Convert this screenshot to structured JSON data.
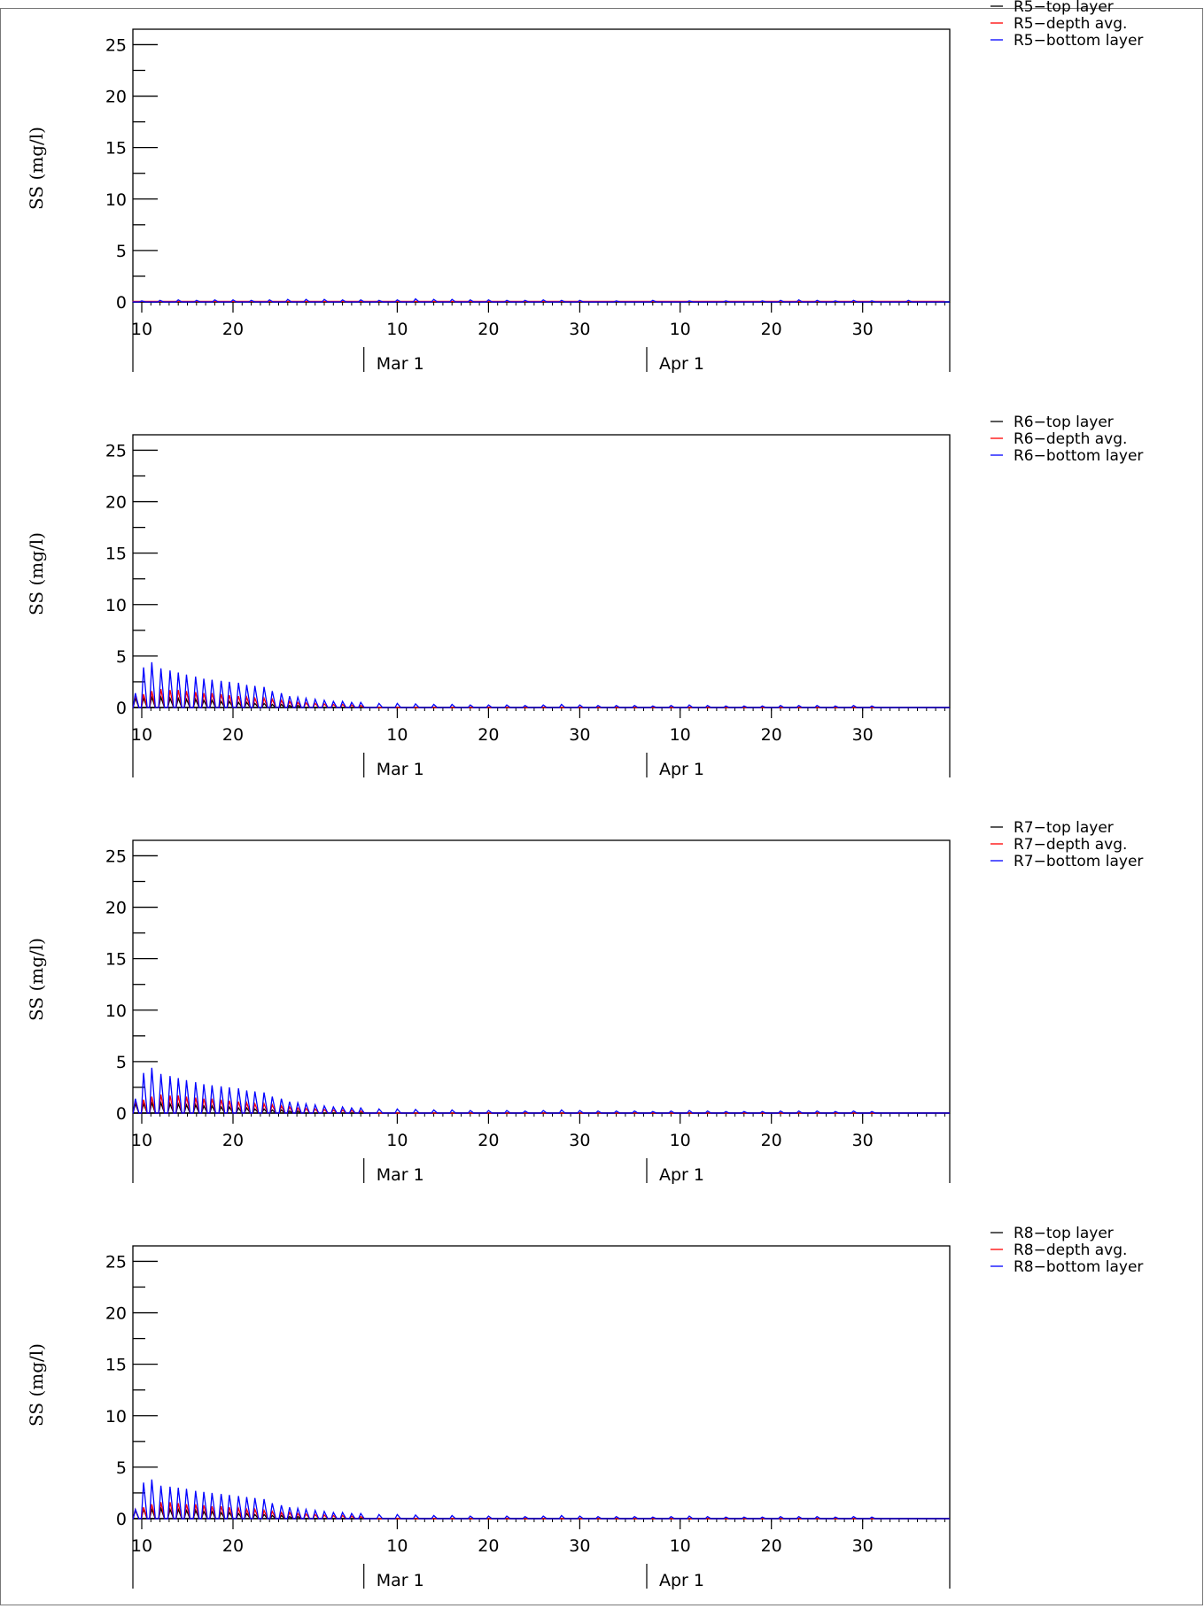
{
  "colors": {
    "top": "#000000",
    "avg": "#ff0000",
    "bottom": "#0000ff"
  },
  "x_axis": {
    "ticks": [
      {
        "label": "10",
        "day": 10
      },
      {
        "label": "20",
        "day": 20
      },
      {
        "label": "10",
        "day": 38
      },
      {
        "label": "20",
        "day": 48
      },
      {
        "label": "30",
        "day": 58
      },
      {
        "label": "10",
        "day": 69
      },
      {
        "label": "20",
        "day": 79
      },
      {
        "label": "30",
        "day": 89
      }
    ],
    "months": [
      {
        "label": "Mar 1",
        "day": 29
      },
      {
        "label": "Apr 1",
        "day": 60
      }
    ],
    "day_range": [
      9,
      98
    ]
  },
  "chart_data": [
    {
      "type": "line",
      "ylabel": "SS (mg/l)",
      "ylim": [
        0,
        26.5
      ],
      "yticks": [
        0,
        5,
        10,
        15,
        20,
        25
      ],
      "series": [
        {
          "name": "R5−top layer",
          "color": "#000000",
          "x": [
            9,
            98
          ],
          "y": [
            0.02,
            0.02
          ]
        },
        {
          "name": "R5−depth avg.",
          "color": "#ff0000",
          "x": [
            9,
            98
          ],
          "y": [
            0.05,
            0.05
          ]
        },
        {
          "name": "R5−bottom layer",
          "color": "#0000ff",
          "peak_days": [
            10,
            12,
            14,
            16,
            18,
            20,
            22,
            24,
            26,
            28,
            30,
            32,
            34,
            36,
            38,
            40,
            42,
            44,
            46,
            48,
            50,
            52,
            54,
            56,
            58,
            62,
            66,
            70,
            74,
            78,
            80,
            82,
            84,
            86,
            88,
            90,
            94
          ],
          "peak_values": [
            0.1,
            0.15,
            0.2,
            0.15,
            0.2,
            0.2,
            0.15,
            0.2,
            0.25,
            0.25,
            0.25,
            0.2,
            0.2,
            0.15,
            0.2,
            0.3,
            0.25,
            0.25,
            0.2,
            0.2,
            0.15,
            0.15,
            0.2,
            0.15,
            0.15,
            0.1,
            0.15,
            0.1,
            0.1,
            0.1,
            0.15,
            0.2,
            0.15,
            0.1,
            0.15,
            0.1,
            0.15
          ]
        }
      ]
    },
    {
      "type": "line",
      "ylabel": "SS (mg/l)",
      "ylim": [
        0,
        26.5
      ],
      "yticks": [
        0,
        5,
        10,
        15,
        20,
        25
      ],
      "series": [
        {
          "name": "R6−top layer",
          "color": "#000000",
          "peak_days": [
            9.3,
            10.2,
            11.1,
            12.1,
            13.1,
            14.0,
            14.9,
            15.9,
            16.8,
            17.7,
            18.7,
            19.6,
            20.6,
            21.5,
            22.4,
            23.4,
            24.3,
            25.3,
            26.2,
            27.1
          ],
          "peak_values": [
            0.9,
            0.9,
            1.0,
            1.0,
            0.9,
            0.9,
            0.8,
            0.8,
            0.7,
            0.7,
            0.6,
            0.6,
            0.5,
            0.5,
            0.4,
            0.4,
            0.3,
            0.3,
            0.2,
            0.2
          ]
        },
        {
          "name": "R6−depth avg.",
          "color": "#ff0000",
          "peak_days": [
            9.3,
            10.2,
            11.1,
            12.1,
            13.1,
            14.0,
            14.9,
            15.9,
            16.8,
            17.7,
            18.7,
            19.6,
            20.6,
            21.5,
            22.4,
            23.4,
            24.3,
            25.3,
            26.2,
            27.1,
            28.0,
            29.0,
            30.0,
            31.0,
            32.0,
            33.0,
            34.0
          ],
          "peak_values": [
            1.2,
            1.3,
            1.6,
            1.8,
            1.7,
            1.7,
            1.6,
            1.5,
            1.4,
            1.4,
            1.3,
            1.2,
            1.1,
            1.0,
            0.9,
            0.9,
            0.8,
            0.7,
            0.6,
            0.5,
            0.45,
            0.4,
            0.35,
            0.3,
            0.3,
            0.25,
            0.2
          ]
        },
        {
          "name": "R6−bottom layer",
          "color": "#0000ff",
          "peak_days": [
            9.3,
            10.2,
            11.1,
            12.1,
            13.1,
            14.0,
            14.9,
            15.9,
            16.8,
            17.7,
            18.7,
            19.6,
            20.6,
            21.5,
            22.4,
            23.4,
            24.3,
            25.3,
            26.2,
            27.1,
            28.0,
            29.0,
            30.0,
            31.0,
            32.0,
            33.0,
            34.0,
            36.0,
            38.0,
            40.0,
            42.0,
            44.0,
            46.0,
            48.0,
            50.0,
            52.0,
            54.0,
            56.0,
            58.0,
            60.0,
            62.0,
            64.0,
            66.0,
            68.0,
            70.0,
            72.0,
            74.0,
            76.0,
            78.0,
            80.0,
            82.0,
            84.0,
            86.0,
            88.0,
            90.0
          ],
          "peak_values": [
            1.4,
            3.9,
            4.4,
            3.8,
            3.6,
            3.4,
            3.2,
            3.0,
            2.8,
            2.7,
            2.6,
            2.5,
            2.4,
            2.2,
            2.1,
            2.0,
            1.6,
            1.4,
            1.1,
            1.0,
            0.9,
            0.8,
            0.7,
            0.6,
            0.6,
            0.5,
            0.5,
            0.4,
            0.4,
            0.35,
            0.3,
            0.3,
            0.25,
            0.25,
            0.25,
            0.2,
            0.25,
            0.3,
            0.25,
            0.2,
            0.2,
            0.2,
            0.15,
            0.2,
            0.25,
            0.2,
            0.15,
            0.15,
            0.15,
            0.2,
            0.2,
            0.2,
            0.15,
            0.2,
            0.15
          ]
        }
      ]
    },
    {
      "type": "line",
      "ylabel": "SS (mg/l)",
      "ylim": [
        0,
        26.5
      ],
      "yticks": [
        0,
        5,
        10,
        15,
        20,
        25
      ],
      "series": [
        {
          "name": "R7−top layer",
          "color": "#000000",
          "peak_days": [
            9.3,
            10.2,
            11.1,
            12.1,
            13.1,
            14.0,
            14.9,
            15.9,
            16.8,
            17.7,
            18.7,
            19.6,
            20.6,
            21.5,
            22.4,
            23.4,
            24.3,
            25.3,
            26.2,
            27.1
          ],
          "peak_values": [
            0.9,
            0.9,
            1.0,
            1.0,
            0.9,
            0.9,
            0.8,
            0.8,
            0.7,
            0.7,
            0.6,
            0.6,
            0.5,
            0.5,
            0.4,
            0.4,
            0.3,
            0.3,
            0.2,
            0.2
          ]
        },
        {
          "name": "R7−depth avg.",
          "color": "#ff0000",
          "peak_days": [
            9.3,
            10.2,
            11.1,
            12.1,
            13.1,
            14.0,
            14.9,
            15.9,
            16.8,
            17.7,
            18.7,
            19.6,
            20.6,
            21.5,
            22.4,
            23.4,
            24.3,
            25.3,
            26.2,
            27.1,
            28.0,
            29.0,
            30.0,
            31.0,
            32.0,
            33.0,
            34.0
          ],
          "peak_values": [
            1.2,
            1.3,
            1.6,
            1.8,
            1.7,
            1.7,
            1.6,
            1.5,
            1.4,
            1.4,
            1.3,
            1.2,
            1.1,
            1.0,
            0.9,
            0.9,
            0.8,
            0.7,
            0.6,
            0.5,
            0.45,
            0.4,
            0.35,
            0.3,
            0.3,
            0.25,
            0.2
          ]
        },
        {
          "name": "R7−bottom layer",
          "color": "#0000ff",
          "peak_days": [
            9.3,
            10.2,
            11.1,
            12.1,
            13.1,
            14.0,
            14.9,
            15.9,
            16.8,
            17.7,
            18.7,
            19.6,
            20.6,
            21.5,
            22.4,
            23.4,
            24.3,
            25.3,
            26.2,
            27.1,
            28.0,
            29.0,
            30.0,
            31.0,
            32.0,
            33.0,
            34.0,
            36.0,
            38.0,
            40.0,
            42.0,
            44.0,
            46.0,
            48.0,
            50.0,
            52.0,
            54.0,
            56.0,
            58.0,
            60.0,
            62.0,
            64.0,
            66.0,
            68.0,
            70.0,
            72.0,
            74.0,
            76.0,
            78.0,
            80.0,
            82.0,
            84.0,
            86.0,
            88.0,
            90.0
          ],
          "peak_values": [
            1.4,
            3.9,
            4.4,
            3.8,
            3.6,
            3.4,
            3.2,
            3.0,
            2.8,
            2.7,
            2.6,
            2.5,
            2.4,
            2.2,
            2.1,
            2.0,
            1.6,
            1.4,
            1.1,
            1.0,
            0.9,
            0.8,
            0.7,
            0.6,
            0.6,
            0.5,
            0.5,
            0.4,
            0.4,
            0.35,
            0.3,
            0.3,
            0.25,
            0.25,
            0.25,
            0.2,
            0.25,
            0.3,
            0.25,
            0.2,
            0.2,
            0.2,
            0.15,
            0.2,
            0.25,
            0.2,
            0.15,
            0.15,
            0.15,
            0.2,
            0.2,
            0.2,
            0.15,
            0.2,
            0.15
          ]
        }
      ]
    },
    {
      "type": "line",
      "ylabel": "SS (mg/l)",
      "ylim": [
        0,
        26.5
      ],
      "yticks": [
        0,
        5,
        10,
        15,
        20,
        25
      ],
      "series": [
        {
          "name": "R8−top layer",
          "color": "#000000",
          "peak_days": [
            9.3,
            10.2,
            11.1,
            12.1,
            13.1,
            14.0,
            14.9,
            15.9,
            16.8,
            17.7,
            18.7,
            19.6,
            20.6,
            21.5,
            22.4,
            23.4,
            24.3,
            25.3,
            26.2,
            27.1
          ],
          "peak_values": [
            0.8,
            0.9,
            0.9,
            1.0,
            0.9,
            0.9,
            0.8,
            0.8,
            0.7,
            0.7,
            0.6,
            0.6,
            0.5,
            0.5,
            0.4,
            0.4,
            0.3,
            0.3,
            0.2,
            0.2
          ]
        },
        {
          "name": "R8−depth avg.",
          "color": "#ff0000",
          "peak_days": [
            9.3,
            10.2,
            11.1,
            12.1,
            13.1,
            14.0,
            14.9,
            15.9,
            16.8,
            17.7,
            18.7,
            19.6,
            20.6,
            21.5,
            22.4,
            23.4,
            24.3,
            25.3,
            26.2,
            27.1,
            28.0,
            29.0,
            30.0,
            31.0,
            32.0,
            33.0,
            34.0
          ],
          "peak_values": [
            0.9,
            1.1,
            1.4,
            1.6,
            1.6,
            1.5,
            1.4,
            1.4,
            1.3,
            1.2,
            1.2,
            1.1,
            1.0,
            0.9,
            0.9,
            0.8,
            0.7,
            0.6,
            0.6,
            0.5,
            0.45,
            0.4,
            0.35,
            0.3,
            0.3,
            0.25,
            0.2
          ]
        },
        {
          "name": "R8−bottom layer",
          "color": "#0000ff",
          "peak_days": [
            9.3,
            10.2,
            11.1,
            12.1,
            13.1,
            14.0,
            14.9,
            15.9,
            16.8,
            17.7,
            18.7,
            19.6,
            20.6,
            21.5,
            22.4,
            23.4,
            24.3,
            25.3,
            26.2,
            27.1,
            28.0,
            29.0,
            30.0,
            31.0,
            32.0,
            33.0,
            34.0,
            36.0,
            38.0,
            40.0,
            42.0,
            44.0,
            46.0,
            48.0,
            50.0,
            52.0,
            54.0,
            56.0,
            58.0,
            60.0,
            62.0,
            64.0,
            66.0,
            68.0,
            70.0,
            72.0,
            74.0,
            76.0,
            78.0,
            80.0,
            82.0,
            84.0,
            86.0,
            88.0,
            90.0
          ],
          "peak_values": [
            0.9,
            3.5,
            3.8,
            3.2,
            3.1,
            3.0,
            2.9,
            2.7,
            2.6,
            2.5,
            2.4,
            2.3,
            2.2,
            2.1,
            2.0,
            1.9,
            1.5,
            1.3,
            1.1,
            1.0,
            0.9,
            0.8,
            0.7,
            0.6,
            0.6,
            0.5,
            0.5,
            0.4,
            0.4,
            0.35,
            0.3,
            0.3,
            0.25,
            0.25,
            0.25,
            0.2,
            0.25,
            0.3,
            0.25,
            0.2,
            0.2,
            0.2,
            0.15,
            0.2,
            0.25,
            0.2,
            0.15,
            0.15,
            0.15,
            0.2,
            0.2,
            0.2,
            0.15,
            0.2,
            0.15
          ]
        }
      ]
    }
  ]
}
